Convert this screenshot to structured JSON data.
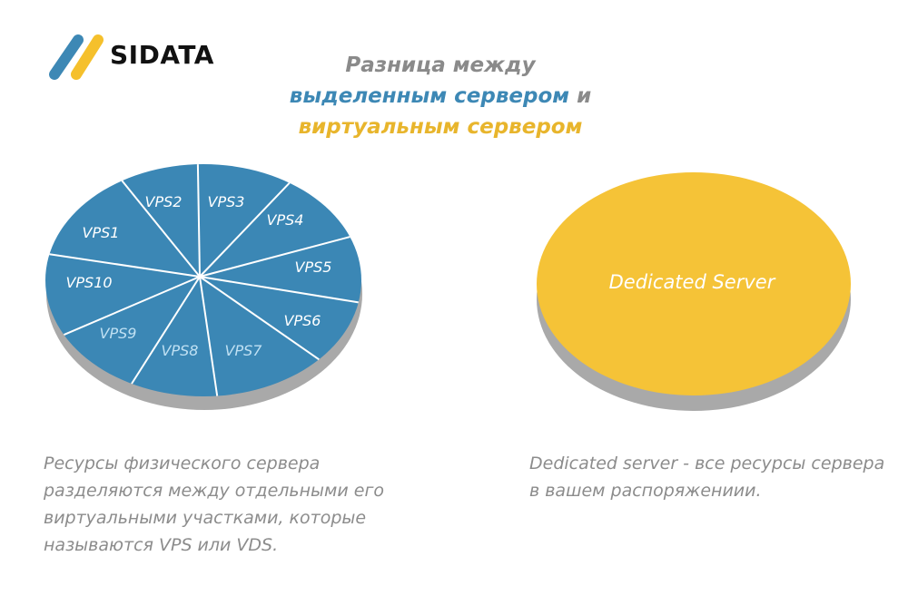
{
  "brand": {
    "name": "SIDATA",
    "colors": {
      "blue": "#3d88b5",
      "yellow": "#f5c02c"
    }
  },
  "title": {
    "line1": "Разница между",
    "line2_part1": "выделенным сервером",
    "line2_part2": " и",
    "line3": "виртуальным сервером"
  },
  "vps_disk": {
    "color": "#3b87b5",
    "shadow_color": "#a9a9a9",
    "slices": [
      "VPS1",
      "VPS2",
      "VPS3",
      "VPS4",
      "VPS5",
      "VPS6",
      "VPS7",
      "VPS8",
      "VPS9",
      "VPS10"
    ]
  },
  "dedicated_disk": {
    "color": "#f5c337",
    "shadow_color": "#a9a9a9",
    "label": "Dedicated Server"
  },
  "descriptions": {
    "left": "Ресурсы физического сервера разделяются между отдельными его виртуальными участками, которые называются VPS или VDS.",
    "right": "Dedicated server - все ресурсы сервера в вашем распоряжениии."
  }
}
